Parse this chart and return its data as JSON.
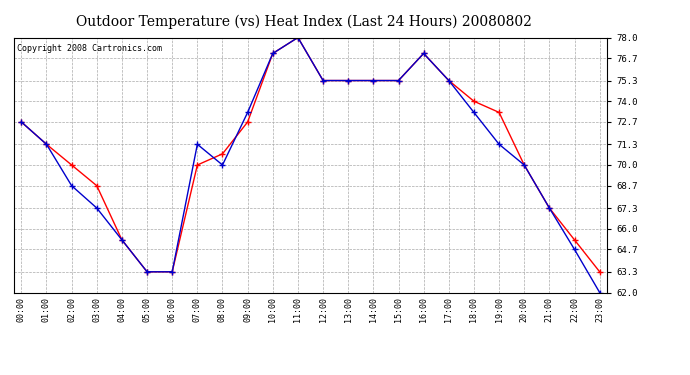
{
  "title": "Outdoor Temperature (vs) Heat Index (Last 24 Hours) 20080802",
  "copyright": "Copyright 2008 Cartronics.com",
  "x_labels": [
    "00:00",
    "01:00",
    "02:00",
    "03:00",
    "04:00",
    "05:00",
    "06:00",
    "07:00",
    "08:00",
    "09:00",
    "10:00",
    "11:00",
    "12:00",
    "13:00",
    "14:00",
    "15:00",
    "16:00",
    "17:00",
    "18:00",
    "19:00",
    "20:00",
    "21:00",
    "22:00",
    "23:00"
  ],
  "temp_data": [
    72.7,
    71.3,
    70.0,
    68.7,
    65.3,
    63.3,
    63.3,
    70.0,
    70.7,
    72.7,
    77.0,
    78.0,
    75.3,
    75.3,
    75.3,
    75.3,
    77.0,
    75.3,
    74.0,
    73.3,
    70.0,
    67.3,
    65.3,
    63.3
  ],
  "heat_data": [
    72.7,
    71.3,
    68.7,
    67.3,
    65.3,
    63.3,
    63.3,
    71.3,
    70.0,
    73.3,
    77.0,
    78.0,
    75.3,
    75.3,
    75.3,
    75.3,
    77.0,
    75.3,
    73.3,
    71.3,
    70.0,
    67.3,
    64.7,
    62.0
  ],
  "ylim_min": 62.0,
  "ylim_max": 78.0,
  "yticks": [
    62.0,
    63.3,
    64.7,
    66.0,
    67.3,
    68.7,
    70.0,
    71.3,
    72.7,
    74.0,
    75.3,
    76.7,
    78.0
  ],
  "temp_color": "#FF0000",
  "heat_color": "#0000CC",
  "bg_color": "#FFFFFF",
  "plot_bg_color": "#FFFFFF",
  "grid_color": "#AAAAAA",
  "title_fontsize": 10,
  "copyright_fontsize": 6
}
